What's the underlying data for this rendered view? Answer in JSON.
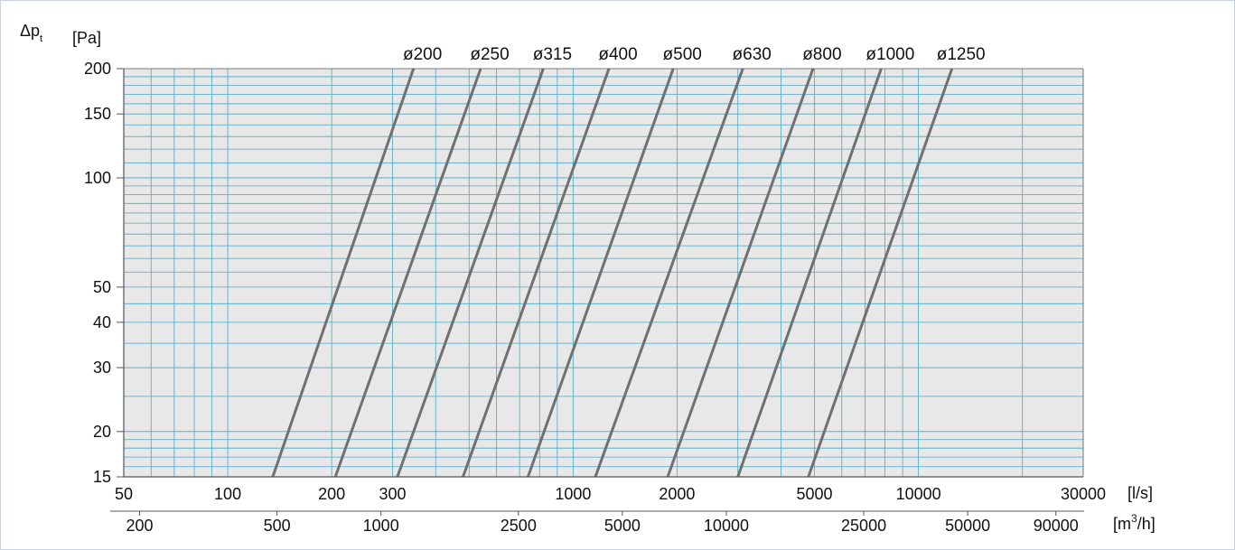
{
  "chart_data": {
    "type": "line",
    "title": "",
    "ylabel_symbol": "Δp",
    "ylabel_subscript": "t",
    "y_unit": "[Pa]",
    "x_unit_ls": "[l/s]",
    "x_unit_m3h_prefix": "[m",
    "x_unit_m3h_sup": "3",
    "x_unit_m3h_suffix": "/h]",
    "y_scale": "log",
    "x_scale": "log",
    "ylim": [
      15,
      200
    ],
    "xlim_ls": [
      50,
      30000
    ],
    "grid": true,
    "y_ticks": [
      {
        "v": 200,
        "label": "200"
      },
      {
        "v": 150,
        "label": "150"
      },
      {
        "v": 100,
        "label": "100"
      },
      {
        "v": 50,
        "label": "50"
      },
      {
        "v": 40,
        "label": "40"
      },
      {
        "v": 30,
        "label": "30"
      },
      {
        "v": 20,
        "label": "20"
      },
      {
        "v": 15,
        "label": "15"
      }
    ],
    "x_ticks_ls": [
      {
        "v": 50,
        "label": "50"
      },
      {
        "v": 100,
        "label": "100"
      },
      {
        "v": 200,
        "label": "200"
      },
      {
        "v": 300,
        "label": "300"
      },
      {
        "v": 1000,
        "label": "1000"
      },
      {
        "v": 2000,
        "label": "2000"
      },
      {
        "v": 5000,
        "label": "5000"
      },
      {
        "v": 10000,
        "label": "10000"
      },
      {
        "v": 30000,
        "label": "30000"
      }
    ],
    "x_ticks_m3h": [
      {
        "v": 200,
        "label": "200"
      },
      {
        "v": 500,
        "label": "500"
      },
      {
        "v": 1000,
        "label": "1000"
      },
      {
        "v": 2500,
        "label": "2500"
      },
      {
        "v": 5000,
        "label": "5000"
      },
      {
        "v": 10000,
        "label": "10000"
      },
      {
        "v": 25000,
        "label": "25000"
      },
      {
        "v": 50000,
        "label": "50000"
      },
      {
        "v": 90000,
        "label": "90000"
      }
    ],
    "series": [
      {
        "name": "ø200",
        "x_ls": [
          135,
          345
        ],
        "y": [
          15,
          200
        ]
      },
      {
        "name": "ø250",
        "x_ls": [
          205,
          540
        ],
        "y": [
          15,
          200
        ]
      },
      {
        "name": "ø315",
        "x_ls": [
          310,
          820
        ],
        "y": [
          15,
          200
        ]
      },
      {
        "name": "ø400",
        "x_ls": [
          480,
          1270
        ],
        "y": [
          15,
          200
        ]
      },
      {
        "name": "ø500",
        "x_ls": [
          740,
          1950
        ],
        "y": [
          15,
          200
        ]
      },
      {
        "name": "ø630",
        "x_ls": [
          1160,
          3100
        ],
        "y": [
          15,
          200
        ]
      },
      {
        "name": "ø800",
        "x_ls": [
          1880,
          4950
        ],
        "y": [
          15,
          200
        ]
      },
      {
        "name": "ø1000",
        "x_ls": [
          3000,
          7800
        ],
        "y": [
          15,
          200
        ]
      },
      {
        "name": "ø1250",
        "x_ls": [
          4800,
          12500
        ],
        "y": [
          15,
          200
        ]
      }
    ],
    "colors": {
      "plot_bg": "#e8e8e8",
      "grid": "#4aa6c8",
      "curve": "#707070",
      "axis": "#555555"
    }
  }
}
